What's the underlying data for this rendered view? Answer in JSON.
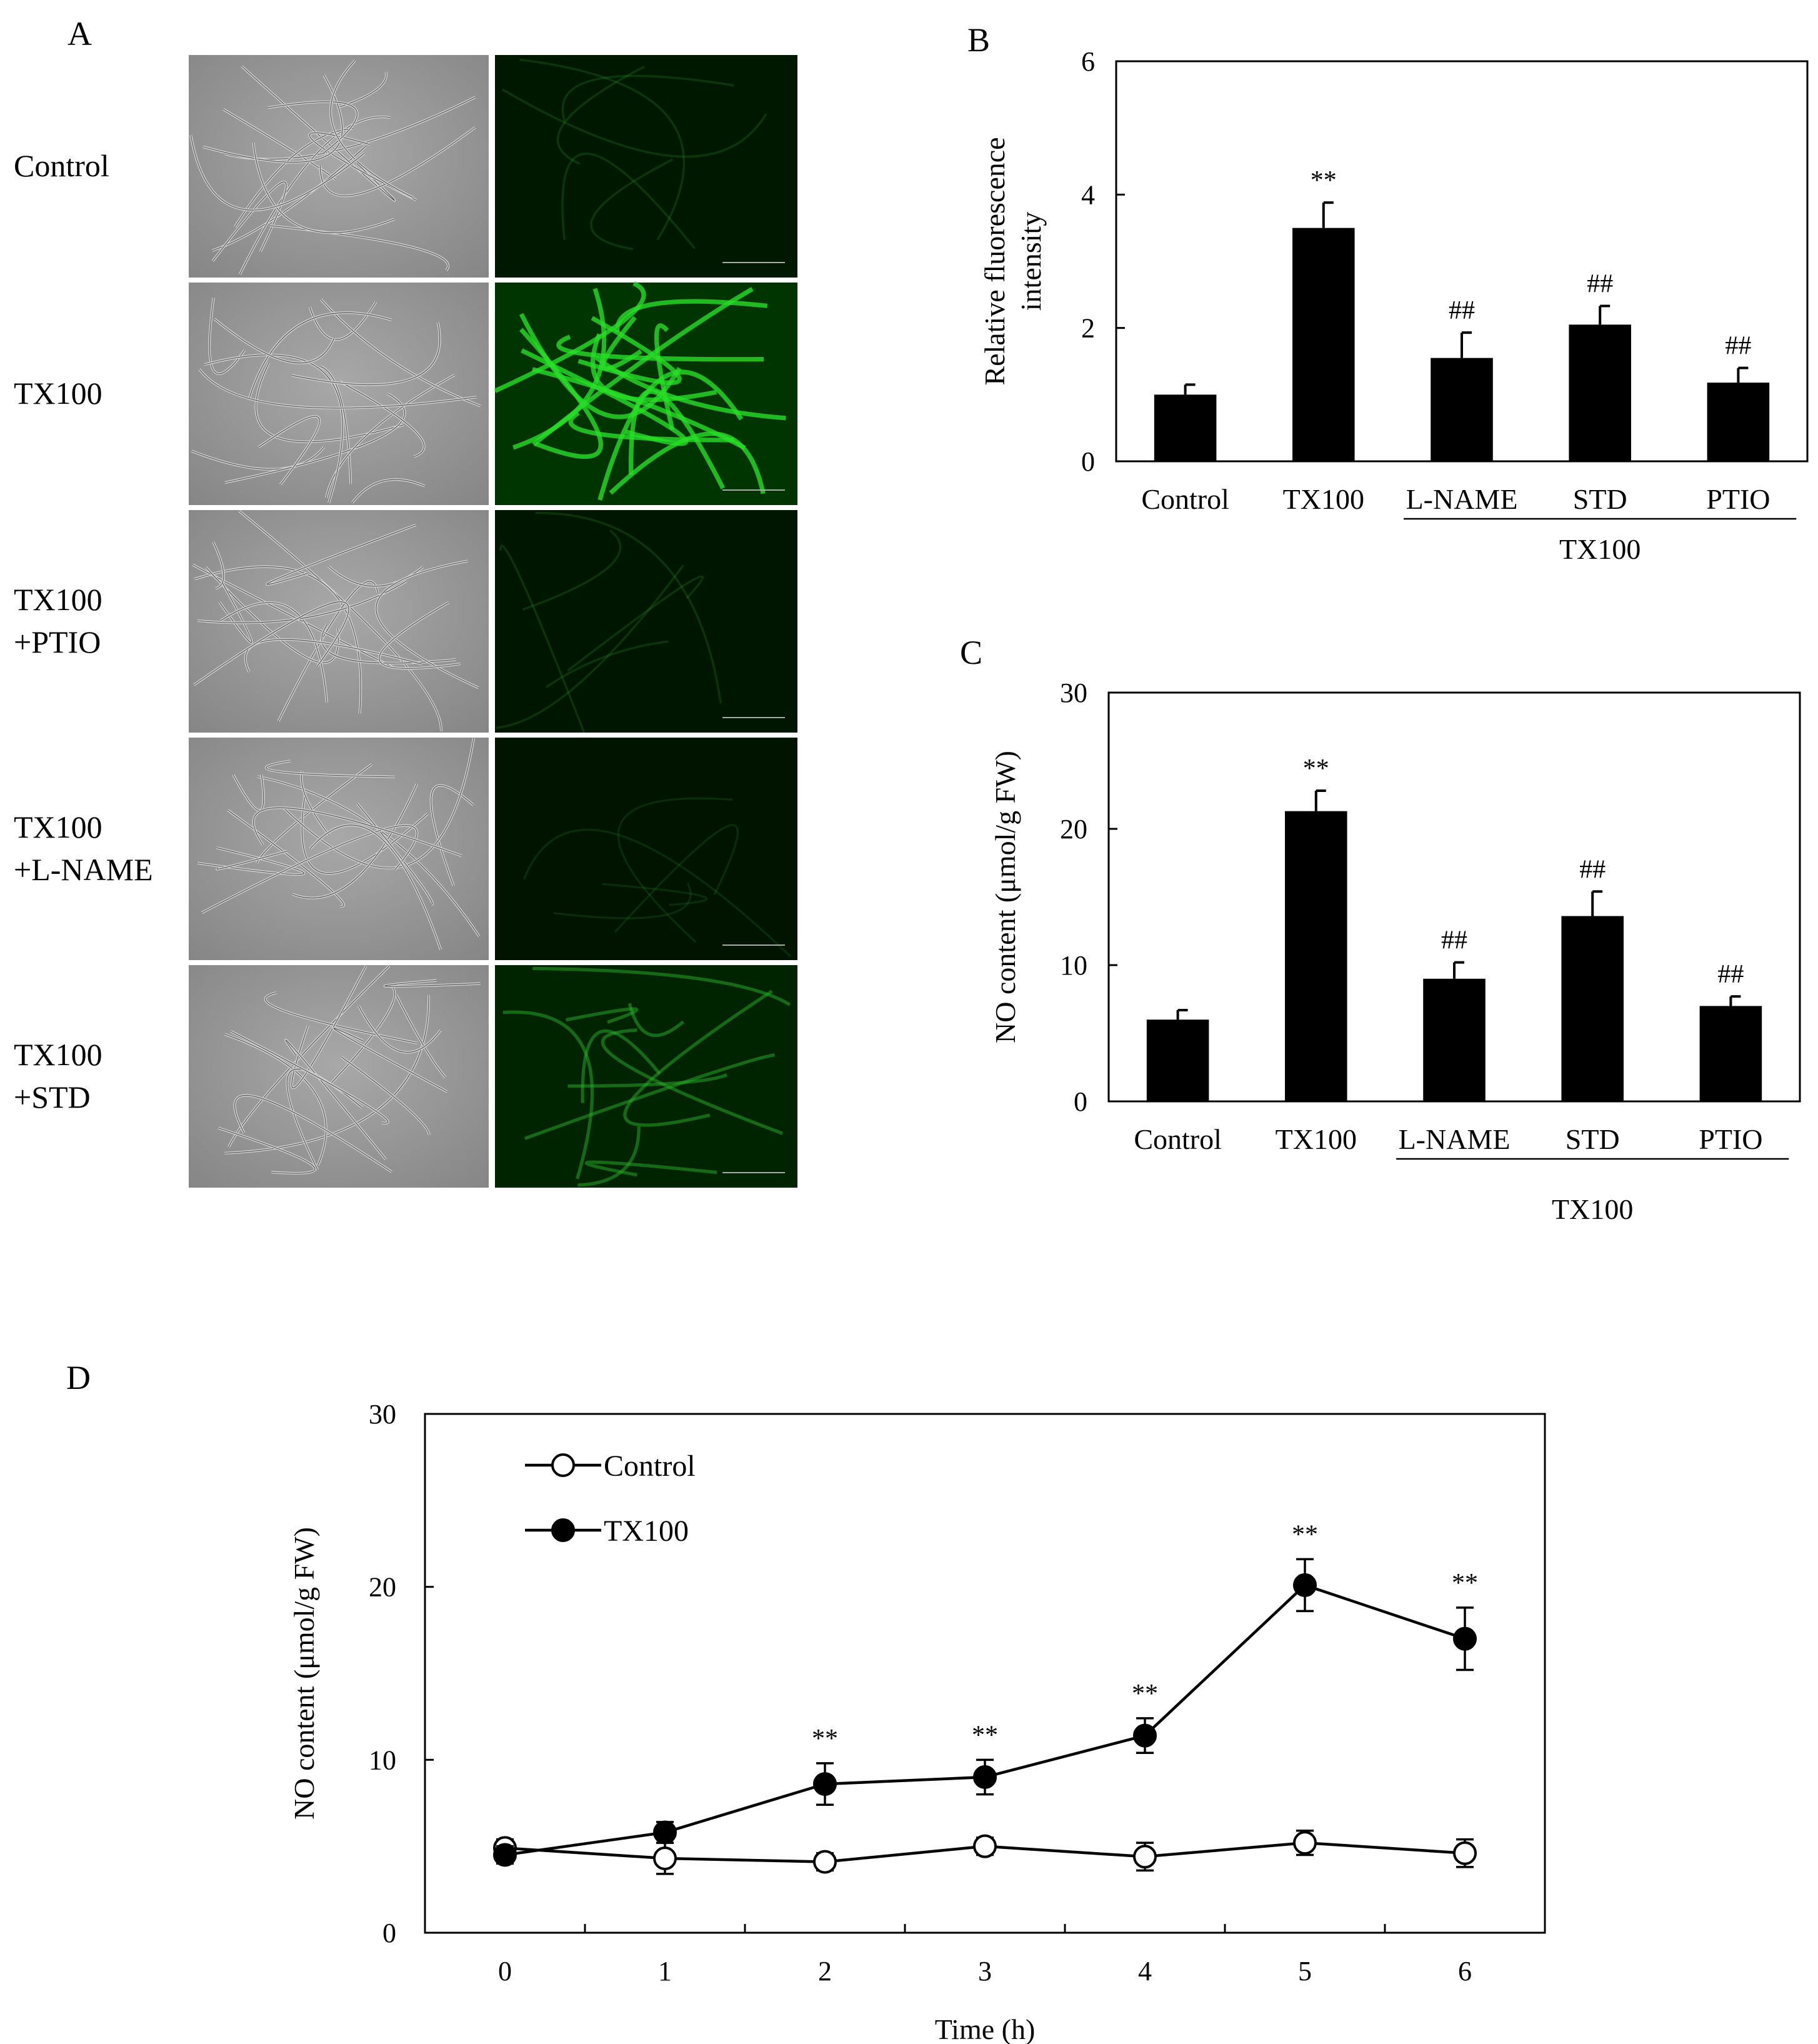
{
  "panels": {
    "A": {
      "letter": "A",
      "rows": [
        {
          "label_lines": [
            "Control"
          ],
          "green_level": 0.12
        },
        {
          "label_lines": [
            "TX100"
          ],
          "green_level": 0.85
        },
        {
          "label_lines": [
            "TX100",
            "+PTIO"
          ],
          "green_level": 0.1
        },
        {
          "label_lines": [
            "TX100",
            "+L-NAME"
          ],
          "green_level": 0.05
        },
        {
          "label_lines": [
            "TX100",
            "+STD"
          ],
          "green_level": 0.45
        }
      ]
    },
    "B": {
      "letter": "B",
      "group_label": "TX100"
    },
    "C": {
      "letter": "C",
      "group_label": "TX100"
    },
    "D": {
      "letter": "D"
    }
  },
  "chart_data": [
    {
      "id": "B",
      "type": "bar",
      "categories": [
        "Control",
        "TX100",
        "L-NAME",
        "STD",
        "PTIO"
      ],
      "values": [
        1.0,
        3.5,
        1.55,
        2.05,
        1.18
      ],
      "errors": [
        0.15,
        0.38,
        0.38,
        0.28,
        0.22
      ],
      "annotations": [
        "",
        "**",
        "##",
        "##",
        "##"
      ],
      "ylabel_lines": [
        "Relative fluorescence",
        "intensity"
      ],
      "xlabel": "",
      "ylim": [
        0,
        6
      ],
      "yticks": [
        0,
        2,
        4,
        6
      ],
      "group": {
        "label": "TX100",
        "from": 2,
        "to": 4
      },
      "bar_color": "#000000"
    },
    {
      "id": "C",
      "type": "bar",
      "categories": [
        "Control",
        "TX100",
        "L-NAME",
        "STD",
        "PTIO"
      ],
      "values": [
        6.0,
        21.3,
        9.0,
        13.6,
        7.0
      ],
      "errors": [
        0.7,
        1.5,
        1.2,
        1.8,
        0.7
      ],
      "annotations": [
        "",
        "**",
        "##",
        "##",
        "##"
      ],
      "ylabel_lines": [
        "NO content (μmol/g FW)"
      ],
      "xlabel": "",
      "ylim": [
        0,
        30
      ],
      "yticks": [
        0,
        10,
        20,
        30
      ],
      "group": {
        "label": "TX100",
        "from": 2,
        "to": 4
      },
      "bar_color": "#000000"
    },
    {
      "id": "D",
      "type": "line",
      "x": [
        0,
        1,
        2,
        3,
        4,
        5,
        6
      ],
      "xticks": [
        0,
        1,
        2,
        3,
        4,
        5,
        6
      ],
      "xlabel": "Time (h)",
      "ylabel": "NO content (μmol/g FW)",
      "ylim": [
        0,
        30
      ],
      "yticks": [
        0,
        10,
        20,
        30
      ],
      "xlim": [
        -0.5,
        6.5
      ],
      "legend_position": "top-left",
      "series": [
        {
          "name": "Control",
          "marker": "open-circle",
          "values": [
            4.9,
            4.3,
            4.1,
            5.0,
            4.4,
            5.2,
            4.6
          ],
          "errors": [
            0.5,
            0.9,
            0.5,
            0.5,
            0.8,
            0.7,
            0.8
          ]
        },
        {
          "name": "TX100",
          "marker": "filled-circle",
          "values": [
            4.5,
            5.8,
            8.6,
            9.0,
            11.4,
            20.1,
            17.0
          ],
          "errors": [
            0.5,
            0.6,
            1.2,
            1.0,
            1.0,
            1.5,
            1.8
          ],
          "annotations": [
            "",
            "",
            "**",
            "**",
            "**",
            "**",
            "**"
          ]
        }
      ]
    }
  ]
}
